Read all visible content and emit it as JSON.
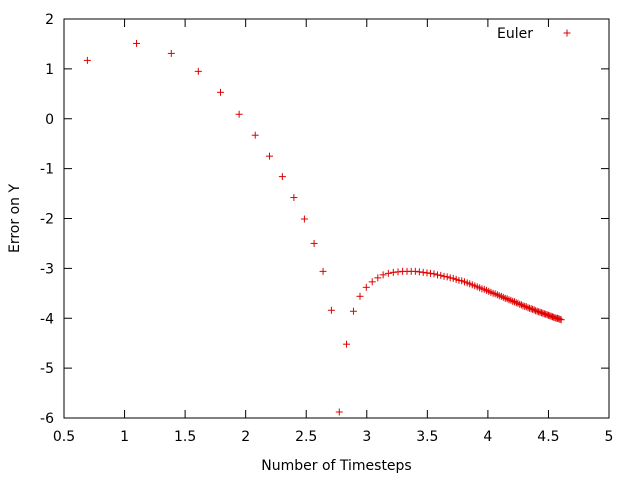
{
  "chart_data": {
    "type": "scatter",
    "xlabel": "Number of Timesteps",
    "ylabel": "Error on Y",
    "xlim": [
      0.5,
      5
    ],
    "ylim": [
      -6,
      2
    ],
    "xticks": [
      "0.5",
      "1",
      "1.5",
      "2",
      "2.5",
      "3",
      "3.5",
      "4",
      "4.5",
      "5"
    ],
    "yticks": [
      "-6",
      "-5",
      "-4",
      "-3",
      "-2",
      "-1",
      "0",
      "1",
      "2"
    ],
    "grid": false,
    "legend_position": "top-right",
    "marker_color": "#e00000",
    "series": [
      {
        "name": "Euler",
        "x": [
          0.693,
          1.099,
          1.386,
          1.609,
          1.792,
          1.946,
          2.079,
          2.197,
          2.303,
          2.398,
          2.485,
          2.565,
          2.639,
          2.708,
          2.773,
          2.833,
          2.89,
          2.944,
          2.996,
          3.045,
          3.091,
          3.135,
          3.178,
          3.219,
          3.258,
          3.296,
          3.332,
          3.367,
          3.401,
          3.434,
          3.466,
          3.497,
          3.526,
          3.555,
          3.584,
          3.611,
          3.638,
          3.664,
          3.689,
          3.714,
          3.738,
          3.761,
          3.784,
          3.807,
          3.829,
          3.85,
          3.871,
          3.892,
          3.912,
          3.932,
          3.951,
          3.97,
          3.989,
          4.007,
          4.025,
          4.043,
          4.06,
          4.078,
          4.094,
          4.111,
          4.127,
          4.143,
          4.159,
          4.174,
          4.19,
          4.205,
          4.22,
          4.234,
          4.248,
          4.263,
          4.277,
          4.29,
          4.304,
          4.317,
          4.331,
          4.344,
          4.357,
          4.369,
          4.382,
          4.394,
          4.407,
          4.419,
          4.431,
          4.443,
          4.454,
          4.466,
          4.477,
          4.489,
          4.5,
          4.511,
          4.522,
          4.533,
          4.543,
          4.554,
          4.564,
          4.575,
          4.585,
          4.595,
          4.605
        ],
        "y": [
          1.17,
          1.51,
          1.31,
          0.95,
          0.53,
          0.09,
          -0.33,
          -0.75,
          -1.16,
          -1.58,
          -2.01,
          -2.5,
          -3.06,
          -3.84,
          -5.88,
          -4.52,
          -3.86,
          -3.56,
          -3.38,
          -3.27,
          -3.19,
          -3.13,
          -3.1,
          -3.08,
          -3.07,
          -3.06,
          -3.06,
          -3.06,
          -3.06,
          -3.07,
          -3.08,
          -3.09,
          -3.1,
          -3.11,
          -3.13,
          -3.14,
          -3.16,
          -3.17,
          -3.19,
          -3.2,
          -3.22,
          -3.24,
          -3.25,
          -3.27,
          -3.29,
          -3.31,
          -3.33,
          -3.35,
          -3.37,
          -3.39,
          -3.41,
          -3.42,
          -3.44,
          -3.46,
          -3.48,
          -3.5,
          -3.51,
          -3.53,
          -3.55,
          -3.56,
          -3.58,
          -3.6,
          -3.61,
          -3.63,
          -3.64,
          -3.66,
          -3.67,
          -3.69,
          -3.7,
          -3.72,
          -3.73,
          -3.75,
          -3.76,
          -3.77,
          -3.79,
          -3.8,
          -3.81,
          -3.82,
          -3.83,
          -3.85,
          -3.86,
          -3.87,
          -3.88,
          -3.89,
          -3.9,
          -3.91,
          -3.92,
          -3.93,
          -3.94,
          -3.95,
          -3.96,
          -3.97,
          -3.98,
          -3.99,
          -4.0,
          -4.0,
          -4.01,
          -4.02,
          -4.03
        ]
      }
    ]
  }
}
